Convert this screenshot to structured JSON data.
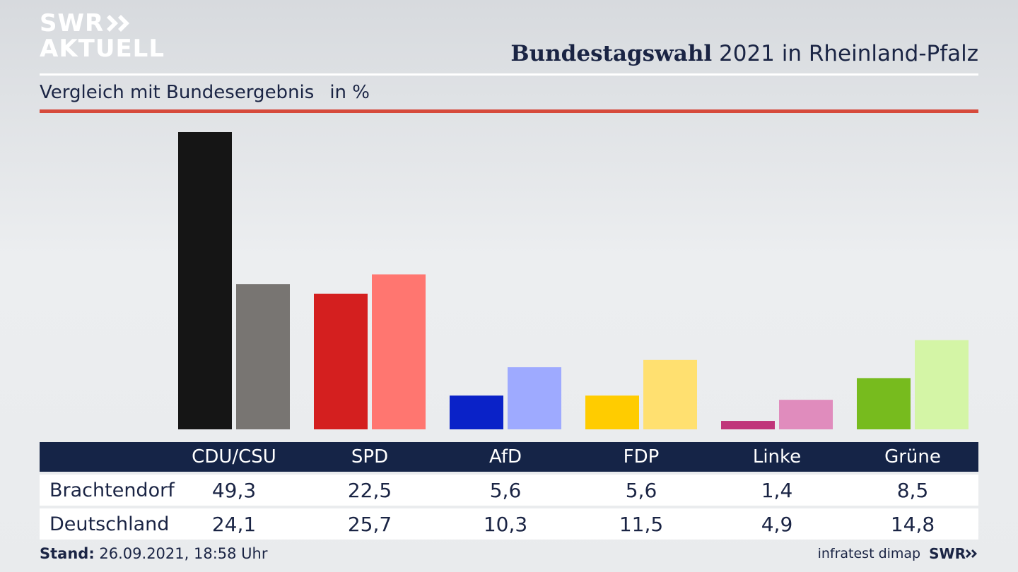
{
  "header": {
    "logo_line1": "SWR",
    "logo_line2": "AKTUELL",
    "title_bold": "Bundestagswahl",
    "title_rest": " 2021 in Rheinland-Pfalz",
    "subtitle": "Vergleich mit Bundesergebnis",
    "unit": "in %"
  },
  "colors": {
    "header_bar": "#152447",
    "text": "#1a2444",
    "red_rule": "#d64a3c"
  },
  "chart_data": {
    "type": "bar",
    "categories": [
      "CDU/CSU",
      "SPD",
      "AfD",
      "FDP",
      "Linke",
      "Grüne"
    ],
    "series": [
      {
        "name": "Brachtendorf",
        "values": [
          49.3,
          22.5,
          5.6,
          5.6,
          1.4,
          8.5
        ],
        "colors": [
          "#151515",
          "#d41f1f",
          "#0a22c8",
          "#ffcc00",
          "#c0357a",
          "#77bb1e"
        ]
      },
      {
        "name": "Deutschland",
        "values": [
          24.1,
          25.7,
          10.3,
          11.5,
          4.9,
          14.8
        ],
        "colors": [
          "#787572",
          "#ff7670",
          "#9eaaff",
          "#ffe070",
          "#e08cbd",
          "#d4f5a6"
        ]
      }
    ],
    "title": "Bundestagswahl 2021 in Rheinland-Pfalz",
    "ylabel": "in %",
    "ylim": [
      0,
      49.3
    ],
    "grid": false,
    "legend": "table-below"
  },
  "footer": {
    "stand_label": "Stand:",
    "stand_value": " 26.09.2021, 18:58 Uhr",
    "source": "infratest dimap",
    "brand": "SWR"
  }
}
